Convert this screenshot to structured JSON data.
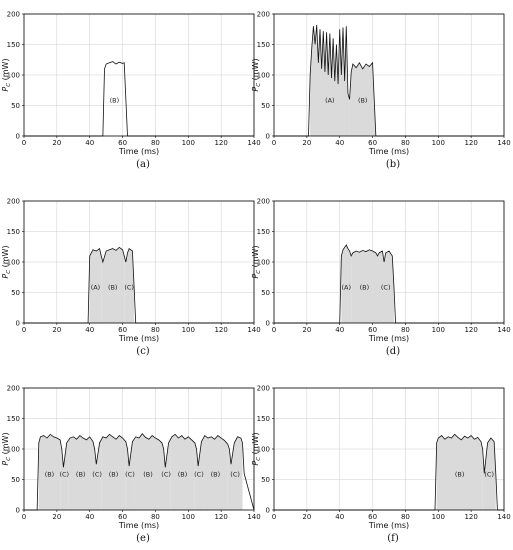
{
  "chart_data": [
    {
      "type": "line",
      "panel": "(a)",
      "xlabel": "Time (ms)",
      "ylabel_main": "P",
      "ylabel_sub": "C",
      "ylabel_unit": "(mW)",
      "xlim": [
        0,
        140
      ],
      "ylim": [
        0,
        200
      ],
      "xticks": [
        0,
        20,
        40,
        60,
        80,
        100,
        120,
        140
      ],
      "yticks": [
        0,
        50,
        100,
        150,
        200
      ],
      "grid": true,
      "x": [
        0,
        47,
        48,
        49,
        50,
        52,
        54,
        56,
        58,
        60,
        61,
        62,
        63,
        140
      ],
      "y": [
        0,
        0,
        0,
        110,
        118,
        120,
        122,
        118,
        121,
        119,
        120,
        60,
        0,
        0
      ],
      "regions": [
        {
          "label": "(B)",
          "start": 48,
          "end": 62
        }
      ],
      "shaded": false
    },
    {
      "type": "line",
      "panel": "(b)",
      "xlabel": "Time (ms)",
      "ylabel_main": "P",
      "ylabel_sub": "C",
      "ylabel_unit": "(mW)",
      "xlim": [
        0,
        140
      ],
      "ylim": [
        0,
        200
      ],
      "xticks": [
        0,
        20,
        40,
        60,
        80,
        100,
        120,
        140
      ],
      "yticks": [
        0,
        50,
        100,
        150,
        200
      ],
      "grid": true,
      "x": [
        0,
        21,
        22,
        23,
        24,
        25,
        26,
        27,
        28,
        29,
        30,
        31,
        32,
        33,
        34,
        35,
        36,
        37,
        38,
        39,
        40,
        41,
        42,
        43,
        44,
        45,
        46,
        47,
        48,
        50,
        52,
        54,
        56,
        58,
        60,
        61,
        62,
        63,
        140
      ],
      "y": [
        0,
        0,
        100,
        145,
        180,
        150,
        182,
        120,
        175,
        110,
        172,
        105,
        170,
        100,
        168,
        95,
        160,
        90,
        150,
        85,
        175,
        100,
        178,
        90,
        180,
        70,
        60,
        105,
        118,
        112,
        120,
        110,
        118,
        114,
        120,
        60,
        0,
        0,
        0
      ],
      "regions": [
        {
          "label": "(A)",
          "start": 22,
          "end": 46
        },
        {
          "label": "(B)",
          "start": 46,
          "end": 62
        }
      ],
      "shaded": true
    },
    {
      "type": "line",
      "panel": "(c)",
      "xlabel": "Time (ms)",
      "ylabel_main": "P",
      "ylabel_sub": "C",
      "ylabel_unit": "(mW)",
      "xlim": [
        0,
        140
      ],
      "ylim": [
        0,
        200
      ],
      "xticks": [
        0,
        20,
        40,
        60,
        80,
        100,
        120,
        140
      ],
      "yticks": [
        0,
        50,
        100,
        150,
        200
      ],
      "grid": true,
      "x": [
        0,
        39,
        40,
        42,
        44,
        46,
        47,
        48,
        50,
        52,
        54,
        56,
        58,
        60,
        61,
        62,
        63,
        64,
        66,
        67,
        68,
        140
      ],
      "y": [
        0,
        0,
        110,
        120,
        118,
        122,
        110,
        100,
        118,
        120,
        122,
        119,
        124,
        120,
        110,
        100,
        115,
        122,
        118,
        60,
        0,
        0
      ],
      "regions": [
        {
          "label": "(A)",
          "start": 40,
          "end": 47
        },
        {
          "label": "(B)",
          "start": 47,
          "end": 61
        },
        {
          "label": "(C)",
          "start": 61,
          "end": 67
        }
      ],
      "shaded": true
    },
    {
      "type": "line",
      "panel": "(d)",
      "xlabel": "Time (ms)",
      "ylabel_main": "P",
      "ylabel_sub": "C",
      "ylabel_unit": "(mW)",
      "xlim": [
        0,
        140
      ],
      "ylim": [
        0,
        200
      ],
      "xticks": [
        0,
        20,
        40,
        60,
        80,
        100,
        120,
        140
      ],
      "yticks": [
        0,
        50,
        100,
        150,
        200
      ],
      "grid": true,
      "x": [
        0,
        40,
        41,
        42,
        44,
        45,
        46,
        47,
        48,
        50,
        52,
        54,
        56,
        58,
        60,
        62,
        63,
        64,
        66,
        67,
        68,
        70,
        72,
        73,
        74,
        140
      ],
      "y": [
        0,
        0,
        110,
        120,
        128,
        122,
        118,
        110,
        115,
        118,
        116,
        119,
        117,
        120,
        118,
        115,
        110,
        115,
        118,
        100,
        115,
        118,
        110,
        60,
        0,
        0
      ],
      "regions": [
        {
          "label": "(A)",
          "start": 41,
          "end": 47
        },
        {
          "label": "(B)",
          "start": 47,
          "end": 63
        },
        {
          "label": "(C)",
          "start": 63,
          "end": 73
        }
      ],
      "shaded": true
    },
    {
      "type": "line",
      "panel": "(e)",
      "xlabel": "Time (ms)",
      "ylabel_main": "P",
      "ylabel_sub": "C",
      "ylabel_unit": "(mW)",
      "xlim": [
        0,
        140
      ],
      "ylim": [
        0,
        200
      ],
      "xticks": [
        0,
        20,
        40,
        60,
        80,
        100,
        120,
        140
      ],
      "yticks": [
        0,
        50,
        100,
        150,
        200
      ],
      "grid": true,
      "x": [
        0,
        8,
        9,
        10,
        12,
        14,
        16,
        18,
        20,
        22,
        23,
        24,
        26,
        28,
        30,
        32,
        34,
        36,
        38,
        40,
        42,
        43,
        44,
        46,
        48,
        50,
        52,
        54,
        56,
        58,
        60,
        62,
        63,
        64,
        66,
        68,
        70,
        72,
        74,
        76,
        78,
        80,
        82,
        84,
        85,
        86,
        88,
        90,
        92,
        94,
        96,
        98,
        100,
        102,
        104,
        105,
        106,
        108,
        110,
        112,
        114,
        116,
        118,
        120,
        122,
        124,
        125,
        126,
        128,
        130,
        132,
        133,
        134,
        140
      ],
      "y": [
        0,
        0,
        110,
        120,
        122,
        118,
        124,
        120,
        118,
        115,
        100,
        70,
        110,
        118,
        120,
        116,
        122,
        118,
        115,
        120,
        112,
        100,
        75,
        110,
        120,
        118,
        124,
        120,
        116,
        122,
        118,
        112,
        100,
        72,
        112,
        120,
        118,
        125,
        119,
        116,
        122,
        118,
        115,
        110,
        100,
        70,
        110,
        120,
        124,
        118,
        122,
        116,
        120,
        115,
        110,
        100,
        72,
        112,
        122,
        118,
        120,
        116,
        122,
        118,
        114,
        108,
        100,
        75,
        110,
        120,
        118,
        110,
        60,
        0
      ],
      "regions": [
        {
          "label": "(B)",
          "start": 9,
          "end": 22
        },
        {
          "label": "(C)",
          "start": 22,
          "end": 27
        },
        {
          "label": "(B)",
          "start": 27,
          "end": 42
        },
        {
          "label": "(C)",
          "start": 42,
          "end": 47
        },
        {
          "label": "(B)",
          "start": 47,
          "end": 62
        },
        {
          "label": "(C)",
          "start": 62,
          "end": 67
        },
        {
          "label": "(B)",
          "start": 67,
          "end": 84
        },
        {
          "label": "(C)",
          "start": 84,
          "end": 89
        },
        {
          "label": "(B)",
          "start": 89,
          "end": 104
        },
        {
          "label": "(C)",
          "start": 104,
          "end": 109
        },
        {
          "label": "(B)",
          "start": 109,
          "end": 124
        },
        {
          "label": "(C)",
          "start": 124,
          "end": 133
        }
      ],
      "shaded": true
    },
    {
      "type": "line",
      "panel": "(f)",
      "xlabel": "Time (ms)",
      "ylabel_main": "P",
      "ylabel_sub": "C",
      "ylabel_unit": "(mW)",
      "xlim": [
        0,
        140
      ],
      "ylim": [
        0,
        200
      ],
      "xticks": [
        0,
        20,
        40,
        60,
        80,
        100,
        120,
        140
      ],
      "yticks": [
        0,
        50,
        100,
        150,
        200
      ],
      "grid": true,
      "x": [
        0,
        98,
        99,
        100,
        102,
        104,
        106,
        108,
        110,
        112,
        114,
        116,
        118,
        120,
        122,
        124,
        126,
        127,
        128,
        130,
        132,
        134,
        135,
        136,
        140
      ],
      "y": [
        0,
        0,
        110,
        118,
        122,
        116,
        120,
        118,
        124,
        119,
        115,
        121,
        118,
        122,
        116,
        119,
        112,
        100,
        60,
        110,
        118,
        112,
        60,
        0,
        0
      ],
      "regions": [
        {
          "label": "(B)",
          "start": 99,
          "end": 127
        },
        {
          "label": "(C)",
          "start": 127,
          "end": 135
        }
      ],
      "shaded": true
    }
  ]
}
